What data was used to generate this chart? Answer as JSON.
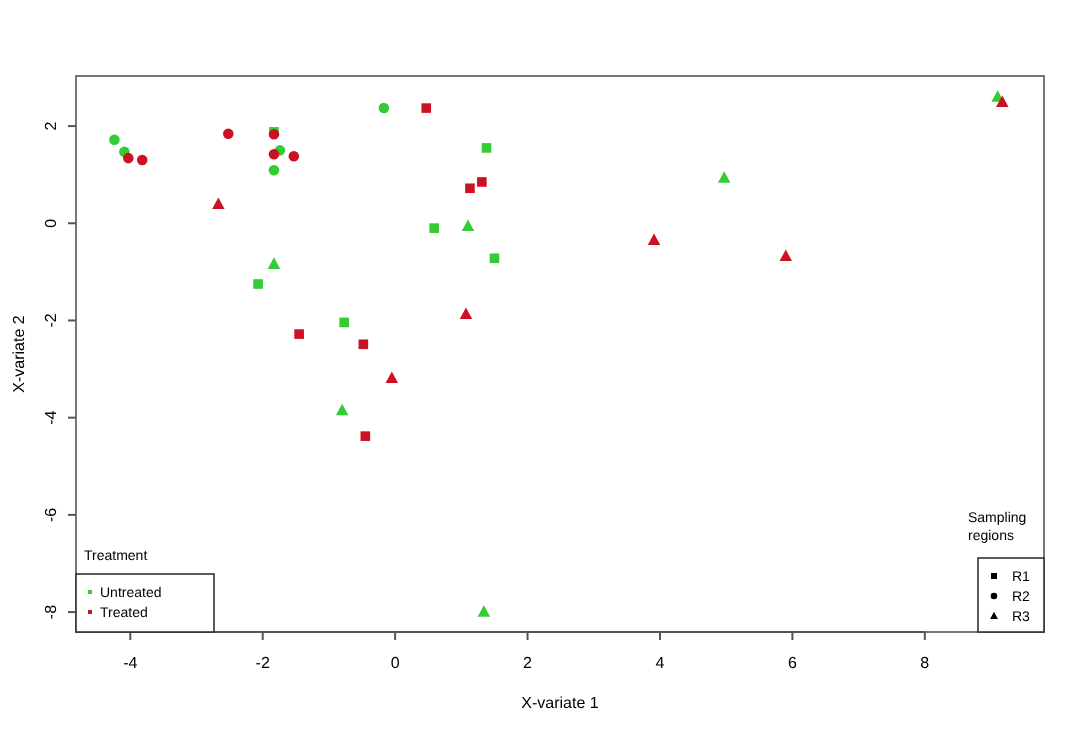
{
  "chart_data": {
    "type": "scatter",
    "xlabel": "X-variate 1",
    "ylabel": "X-variate 2",
    "xlim": [
      -4.82,
      9.8
    ],
    "ylim": [
      -8.41,
      3.03
    ],
    "xticks": [
      -4,
      -2,
      0,
      2,
      4,
      6,
      8
    ],
    "yticks": [
      -8,
      -6,
      -4,
      -2,
      0,
      2
    ],
    "legend": "bottom left",
    "legend_title": "Treatment",
    "annotations": [
      "Sampling regions",
      "R1",
      "R2",
      "R3"
    ],
    "series": [
      {
        "name": "Untreated",
        "marker": "square",
        "color": "#33cc33",
        "x": [
          -1.83,
          1.38,
          0.59,
          1.5,
          -2.07,
          -0.77
        ],
        "values": [
          1.88,
          1.55,
          -0.1,
          -0.72,
          -1.25,
          -2.04
        ]
      },
      {
        "name": "Treated",
        "marker": "square",
        "color": "#cc1122",
        "x": [
          0.47,
          1.13,
          1.31,
          -1.45,
          -0.48,
          -0.45
        ],
        "values": [
          2.37,
          0.72,
          0.85,
          -2.28,
          -2.49,
          -4.38
        ]
      },
      {
        "marker": "circle",
        "color": "#33cc33",
        "x": [
          -4.24,
          -4.09,
          -1.74,
          -1.83,
          -0.17
        ],
        "values": [
          1.72,
          1.47,
          1.5,
          1.09,
          2.37
        ]
      },
      {
        "marker": "circle",
        "color": "#cc1122",
        "x": [
          -4.03,
          -3.82,
          -2.52,
          -1.83,
          -1.83,
          -1.53
        ],
        "values": [
          1.34,
          1.3,
          1.84,
          1.83,
          1.42,
          1.38
        ]
      },
      {
        "marker": "triangle",
        "color": "#33cc33",
        "x": [
          1.1,
          4.97,
          -1.83,
          -0.8,
          1.34,
          9.1
        ],
        "values": [
          -0.06,
          0.93,
          -0.84,
          -3.85,
          -8,
          2.6
        ]
      },
      {
        "marker": "triangle",
        "color": "#cc1122",
        "x": [
          -2.67,
          1.07,
          3.91,
          5.9,
          -0.05,
          9.17
        ],
        "values": [
          0.39,
          -1.87,
          -0.35,
          -0.68,
          -3.19,
          2.49
        ]
      }
    ]
  }
}
